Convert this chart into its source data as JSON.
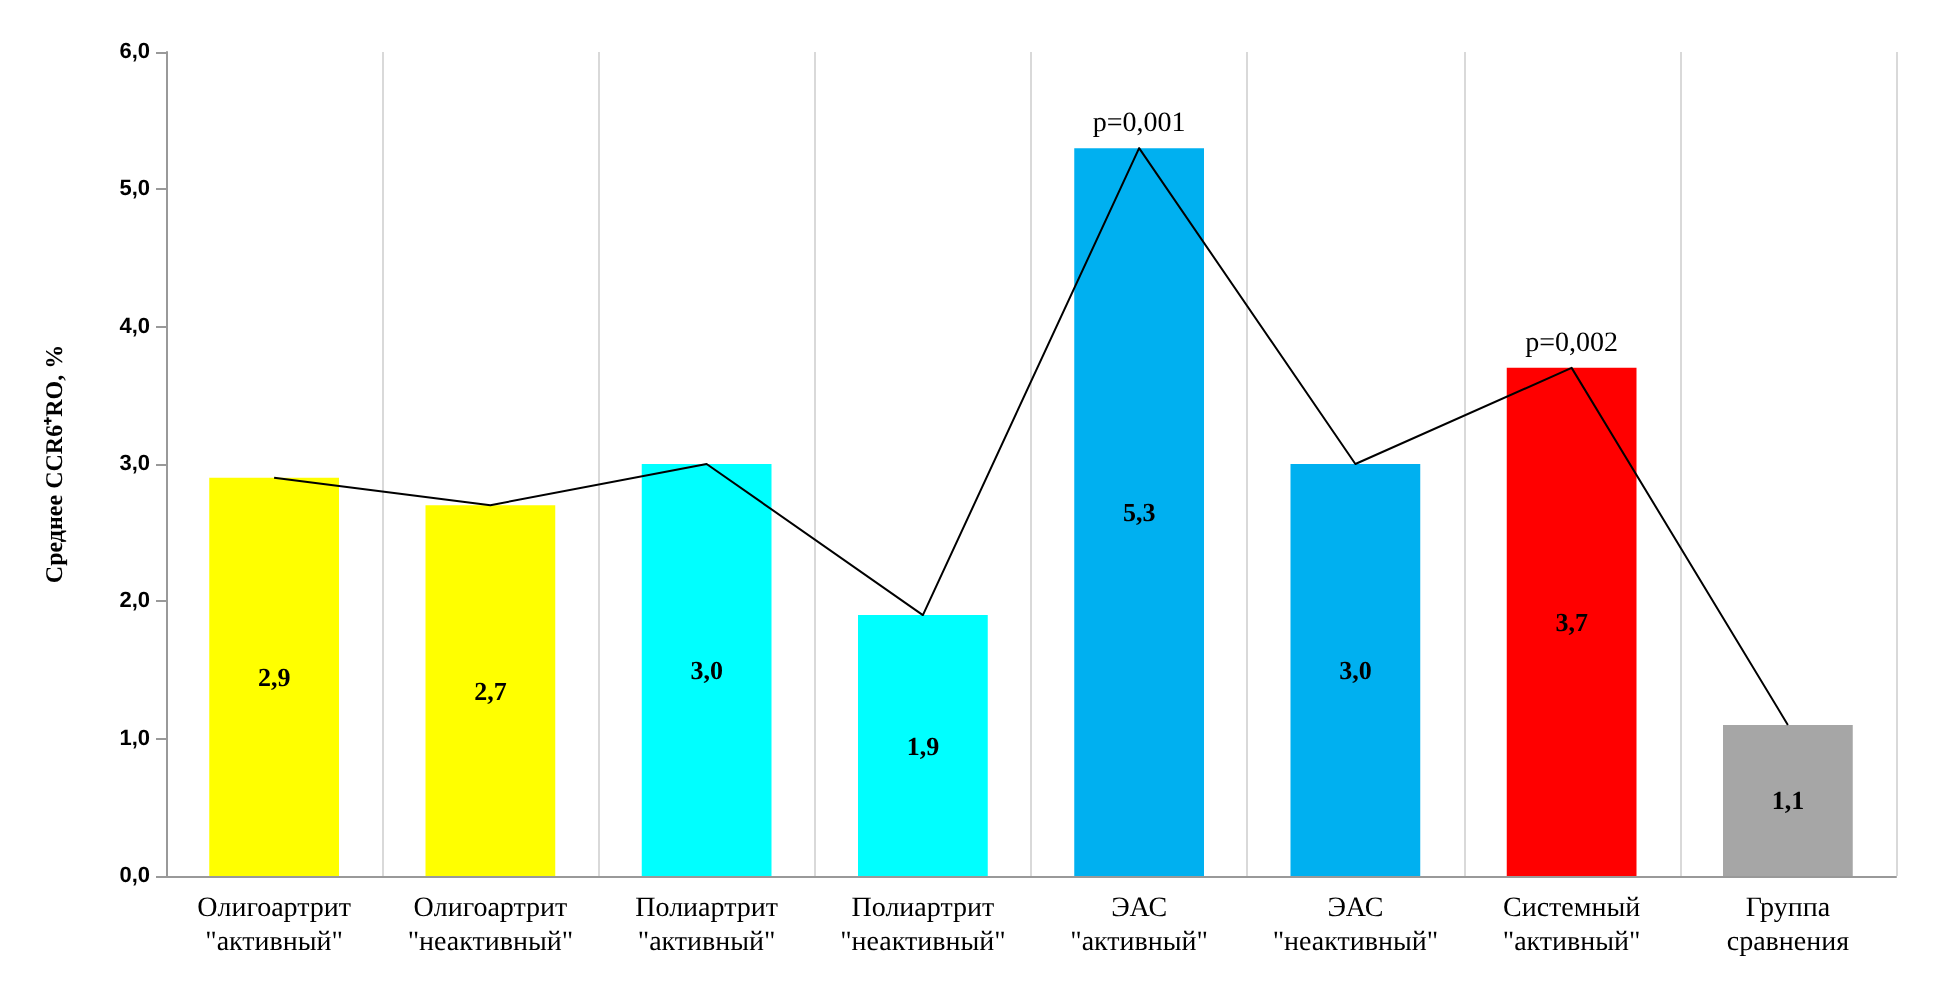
{
  "chart_data": {
    "type": "bar",
    "ylabel": "Среднее CCR6⁺RO, %",
    "categories": [
      "Олигоартрит\n\"активный\"",
      "Олигоартрит\n\"неактивный\"",
      "Полиартрит\n\"активный\"",
      "Полиартрит\n\"неактивный\"",
      "ЭАС\n\"активный\"",
      "ЭАС\n\"неактивный\"",
      "Системный\n\"активный\"",
      "Группа\nсравнения"
    ],
    "series": [
      {
        "values": [
          2.9,
          2.7,
          3.0,
          1.9,
          5.3,
          3.0,
          3.7,
          1.1
        ],
        "colors": [
          "#ffff00",
          "#ffff00",
          "#00ffff",
          "#00ffff",
          "#00b0f0",
          "#00b0f0",
          "#ff0000",
          "#a6a6a6"
        ],
        "value_labels": [
          "2,9",
          "2,7",
          "3,0",
          "1,9",
          "5,3",
          "3,0",
          "3,7",
          "1,1"
        ]
      },
      {
        "type": "line",
        "color": "#000000",
        "values": [
          2.9,
          2.7,
          3.0,
          1.9,
          5.3,
          3.0,
          3.7,
          1.1
        ]
      }
    ],
    "marker": "none",
    "line_style": "solid",
    "ylim": [
      0,
      6
    ],
    "yticks": [
      {
        "value": 0,
        "label": "0,0"
      },
      {
        "value": 1,
        "label": "1,0"
      },
      {
        "value": 2,
        "label": "2,0"
      },
      {
        "value": 3,
        "label": "3,0"
      },
      {
        "value": 4,
        "label": "4,0"
      },
      {
        "value": 5,
        "label": "5,0"
      },
      {
        "value": 6,
        "label": "6,0"
      }
    ],
    "annotations": [
      {
        "text": "p=0,001",
        "x": "ЭАС\n\"активный\"",
        "y": 5.3
      },
      {
        "text": "p=0,002",
        "x": "Системный\n\"активный\"",
        "y": 3.7
      }
    ],
    "grid": "x"
  }
}
